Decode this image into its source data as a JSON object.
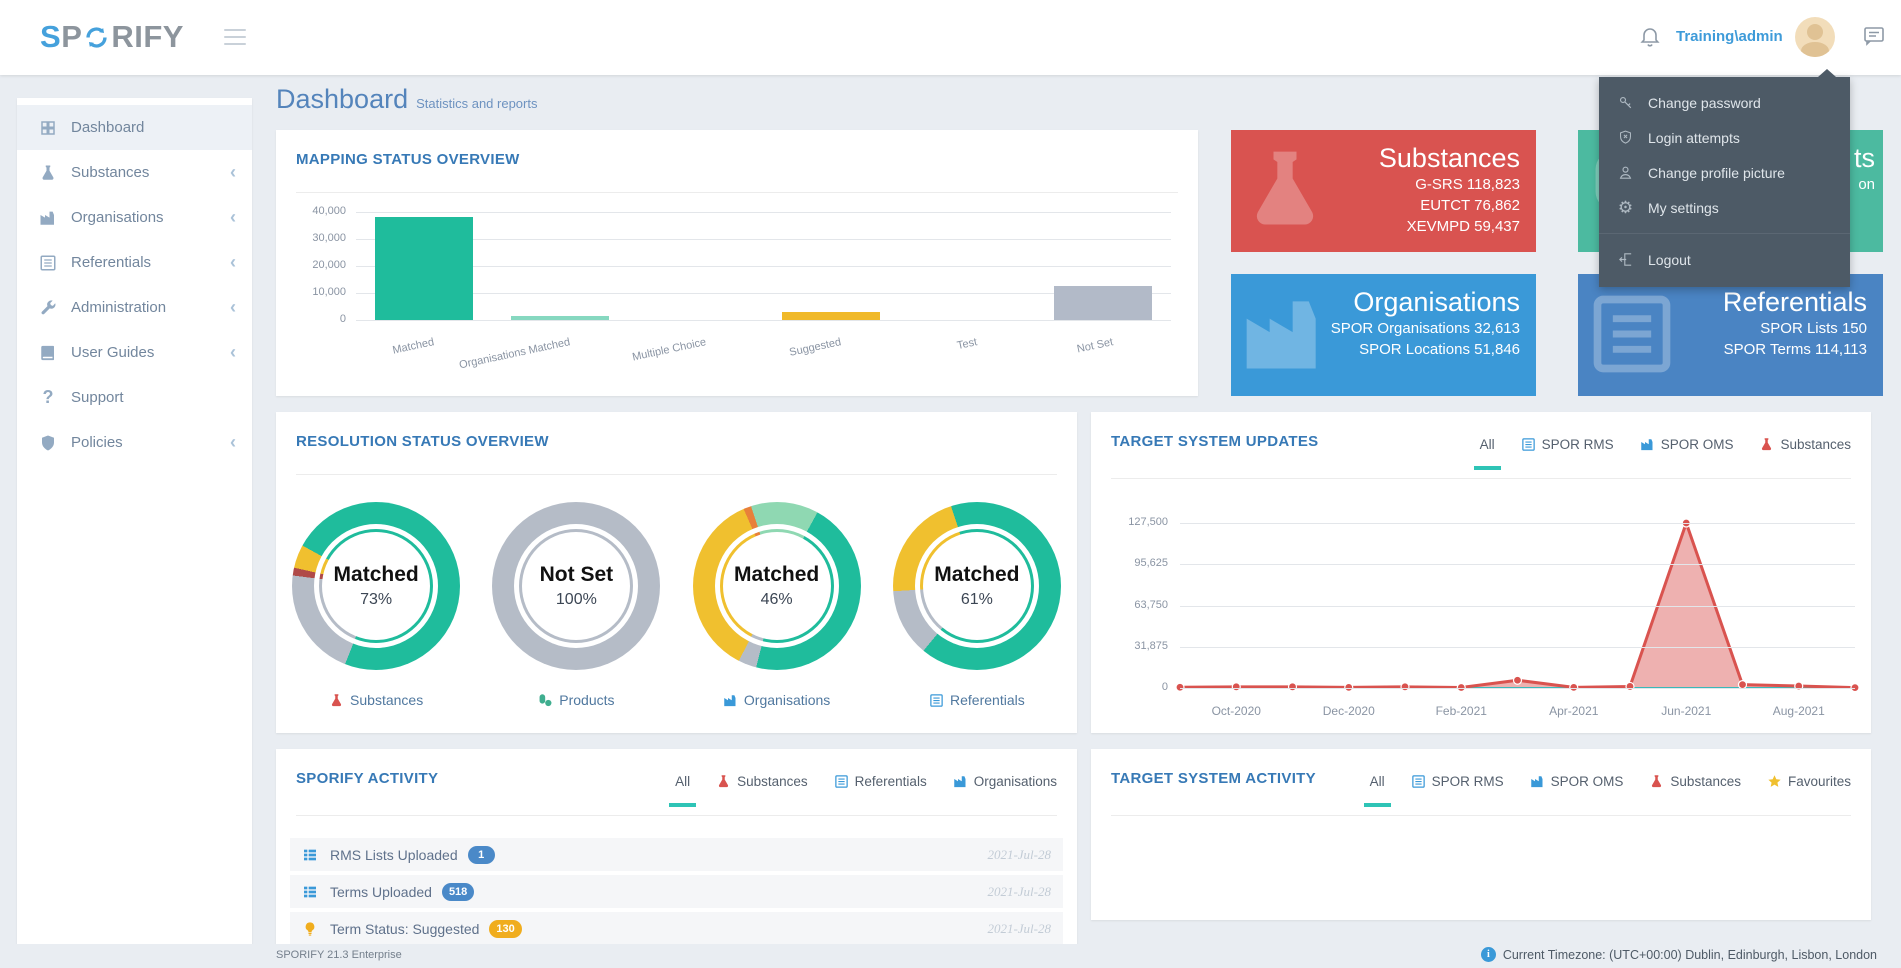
{
  "navbar": {
    "logo_s": "S",
    "logo_p": "P",
    "logo_rify": "RIFY",
    "username": "Training\\admin"
  },
  "user_menu": {
    "items": [
      {
        "label": "Change password",
        "icon": "key"
      },
      {
        "label": "Login attempts",
        "icon": "shield-x"
      },
      {
        "label": "Change profile picture",
        "icon": "user"
      },
      {
        "label": "My settings",
        "icon": "gear"
      },
      {
        "label": "Logout",
        "icon": "logout"
      }
    ]
  },
  "sidebar": {
    "items": [
      {
        "label": "Dashboard",
        "icon": "grid",
        "active": true,
        "chevron": false
      },
      {
        "label": "Substances",
        "icon": "flask",
        "chevron": true
      },
      {
        "label": "Organisations",
        "icon": "factory",
        "chevron": true
      },
      {
        "label": "Referentials",
        "icon": "list",
        "chevron": true
      },
      {
        "label": "Administration",
        "icon": "wrench",
        "chevron": true
      },
      {
        "label": "User Guides",
        "icon": "book",
        "chevron": true
      },
      {
        "label": "Support",
        "icon": "question",
        "chevron": false
      },
      {
        "label": "Policies",
        "icon": "shield",
        "chevron": true
      }
    ]
  },
  "heading": {
    "title": "Dashboard",
    "subtitle": "Statistics and reports"
  },
  "cards": [
    {
      "name": "substances",
      "title": "Substances",
      "lines": [
        "G-SRS 118,823",
        "EUTCT 76,862",
        "XEVMPD 59,437"
      ],
      "color": "#d95350",
      "icon": "flask"
    },
    {
      "name": "products-partially-hidden",
      "title": "ts",
      "lines": [
        "on"
      ],
      "color": "#4cbaa0",
      "icon": "pills"
    },
    {
      "name": "organisations",
      "title": "Organisations",
      "lines": [
        "SPOR Organisations 32,613",
        "SPOR Locations 51,846"
      ],
      "color": "#3a99d8",
      "icon": "factory"
    },
    {
      "name": "referentials",
      "title": "Referentials",
      "lines": [
        "SPOR Lists 150",
        "SPOR Terms 114,113"
      ],
      "color": "#4a84c3",
      "icon": "list"
    }
  ],
  "panels": {
    "mapping": {
      "title": "MAPPING STATUS OVERVIEW"
    },
    "resolution": {
      "title": "RESOLUTION STATUS OVERVIEW"
    },
    "target_updates": {
      "title": "TARGET SYSTEM UPDATES",
      "tabs": [
        {
          "label": "All",
          "active": true
        },
        {
          "label": "SPOR RMS",
          "icon": "list"
        },
        {
          "label": "SPOR OMS",
          "icon": "factory"
        },
        {
          "label": "Substances",
          "icon": "flask"
        }
      ]
    },
    "sporify_activity": {
      "title": "SPORIFY ACTIVITY",
      "tabs": [
        {
          "label": "All",
          "active": true
        },
        {
          "label": "Substances",
          "icon": "flask"
        },
        {
          "label": "Referentials",
          "icon": "list"
        },
        {
          "label": "Organisations",
          "icon": "factory"
        }
      ],
      "rows": [
        {
          "icon": "table",
          "label": "RMS Lists Uploaded",
          "badge": "1",
          "badge_color": "#4a89c8",
          "date": "2021-Jul-28"
        },
        {
          "icon": "table",
          "label": "Terms Uploaded",
          "badge": "518",
          "badge_color": "#4a89c8",
          "date": "2021-Jul-28"
        },
        {
          "icon": "bulb",
          "label": "Term Status: Suggested",
          "badge": "130",
          "badge_color": "#f0ad1e",
          "date": "2021-Jul-28"
        }
      ]
    },
    "target_activity": {
      "title": "TARGET SYSTEM ACTIVITY",
      "tabs": [
        {
          "label": "All",
          "active": true
        },
        {
          "label": "SPOR RMS",
          "icon": "list"
        },
        {
          "label": "SPOR OMS",
          "icon": "factory"
        },
        {
          "label": "Substances",
          "icon": "flask"
        },
        {
          "label": "Favourites",
          "icon": "star"
        }
      ]
    }
  },
  "chart_data": [
    {
      "id": "mapping_status",
      "type": "bar",
      "title": "MAPPING STATUS OVERVIEW",
      "categories": [
        "Matched",
        "Organisations Matched",
        "Multiple Choice",
        "Suggested",
        "Test",
        "Not Set"
      ],
      "values": [
        38000,
        1500,
        0,
        2800,
        0,
        12700
      ],
      "bar_colors": [
        "#1fbc9c",
        "#86d8c0",
        "#1fbc9c",
        "#f0b929",
        "#1fbc9c",
        "#b2bac8"
      ],
      "yticks": [
        "0",
        "10,000",
        "20,000",
        "30,000",
        "40,000"
      ],
      "ylim": [
        0,
        40000
      ],
      "grid": true
    },
    {
      "id": "resolution_status",
      "type": "donut-group",
      "title": "RESOLUTION STATUS OVERVIEW",
      "donuts": [
        {
          "label": "Substances",
          "icon": "flask",
          "status": "Matched",
          "pct": "73%",
          "segments": [
            [
              "#1fbc9c",
              56
            ],
            [
              "#b5bcc7",
              21
            ],
            [
              "#b04a48",
              1.5
            ],
            [
              "#f0c02f",
              4.5
            ],
            [
              "#1fbc9c",
              17
            ]
          ]
        },
        {
          "label": "Products",
          "icon": "pills",
          "status": "Not Set",
          "pct": "100%",
          "segments": [
            [
              "#b5bcc7",
              100
            ]
          ]
        },
        {
          "label": "Organisations",
          "icon": "factory",
          "status": "Matched",
          "pct": "46%",
          "segments": [
            [
              "#8fd8b2",
              8
            ],
            [
              "#1fbc9c",
              46
            ],
            [
              "#b5bcc7",
              3.5
            ],
            [
              "#f0c02f",
              36
            ],
            [
              "#e8803a",
              1.5
            ],
            [
              "#8fd8b2",
              5
            ]
          ]
        },
        {
          "label": "Referentials",
          "icon": "list",
          "status": "Matched",
          "pct": "61%",
          "segments": [
            [
              "#1fbc9c",
              61
            ],
            [
              "#b5bcc7",
              13
            ],
            [
              "#f0c02f",
              21
            ],
            [
              "#1fbc9c",
              5
            ]
          ]
        }
      ]
    },
    {
      "id": "target_system_updates",
      "type": "area",
      "title": "TARGET SYSTEM UPDATES",
      "x_tick_labels": [
        "Oct-2020",
        "Dec-2020",
        "Feb-2021",
        "Apr-2021",
        "Jun-2021",
        "Aug-2021"
      ],
      "yticks": [
        "0",
        "31,875",
        "63,750",
        "95,625",
        "127,500"
      ],
      "ylim": [
        0,
        127500
      ],
      "grid": true,
      "series": [
        {
          "name": "updates",
          "color": "#d9534f",
          "fill": "rgba(217,83,79,0.45)",
          "values": [
            600,
            900,
            900,
            500,
            900,
            400,
            6000,
            500,
            1200,
            127500,
            2600,
            1500,
            300
          ]
        },
        {
          "name": "baseline-purple",
          "color": "#8e6bd8",
          "values": [
            150,
            150,
            150,
            150,
            150,
            150,
            150,
            150,
            150,
            150,
            150,
            150,
            150
          ]
        },
        {
          "name": "baseline-teal",
          "color": "#2ec4b6",
          "values": [
            50,
            50,
            50,
            50,
            50,
            50,
            50,
            50,
            50,
            50,
            50,
            50,
            50
          ]
        }
      ]
    }
  ],
  "footer": {
    "version": "SPORIFY 21.3 Enterprise",
    "timezone": "Current Timezone: (UTC+00:00) Dublin, Edinburgh, Lisbon, London"
  }
}
